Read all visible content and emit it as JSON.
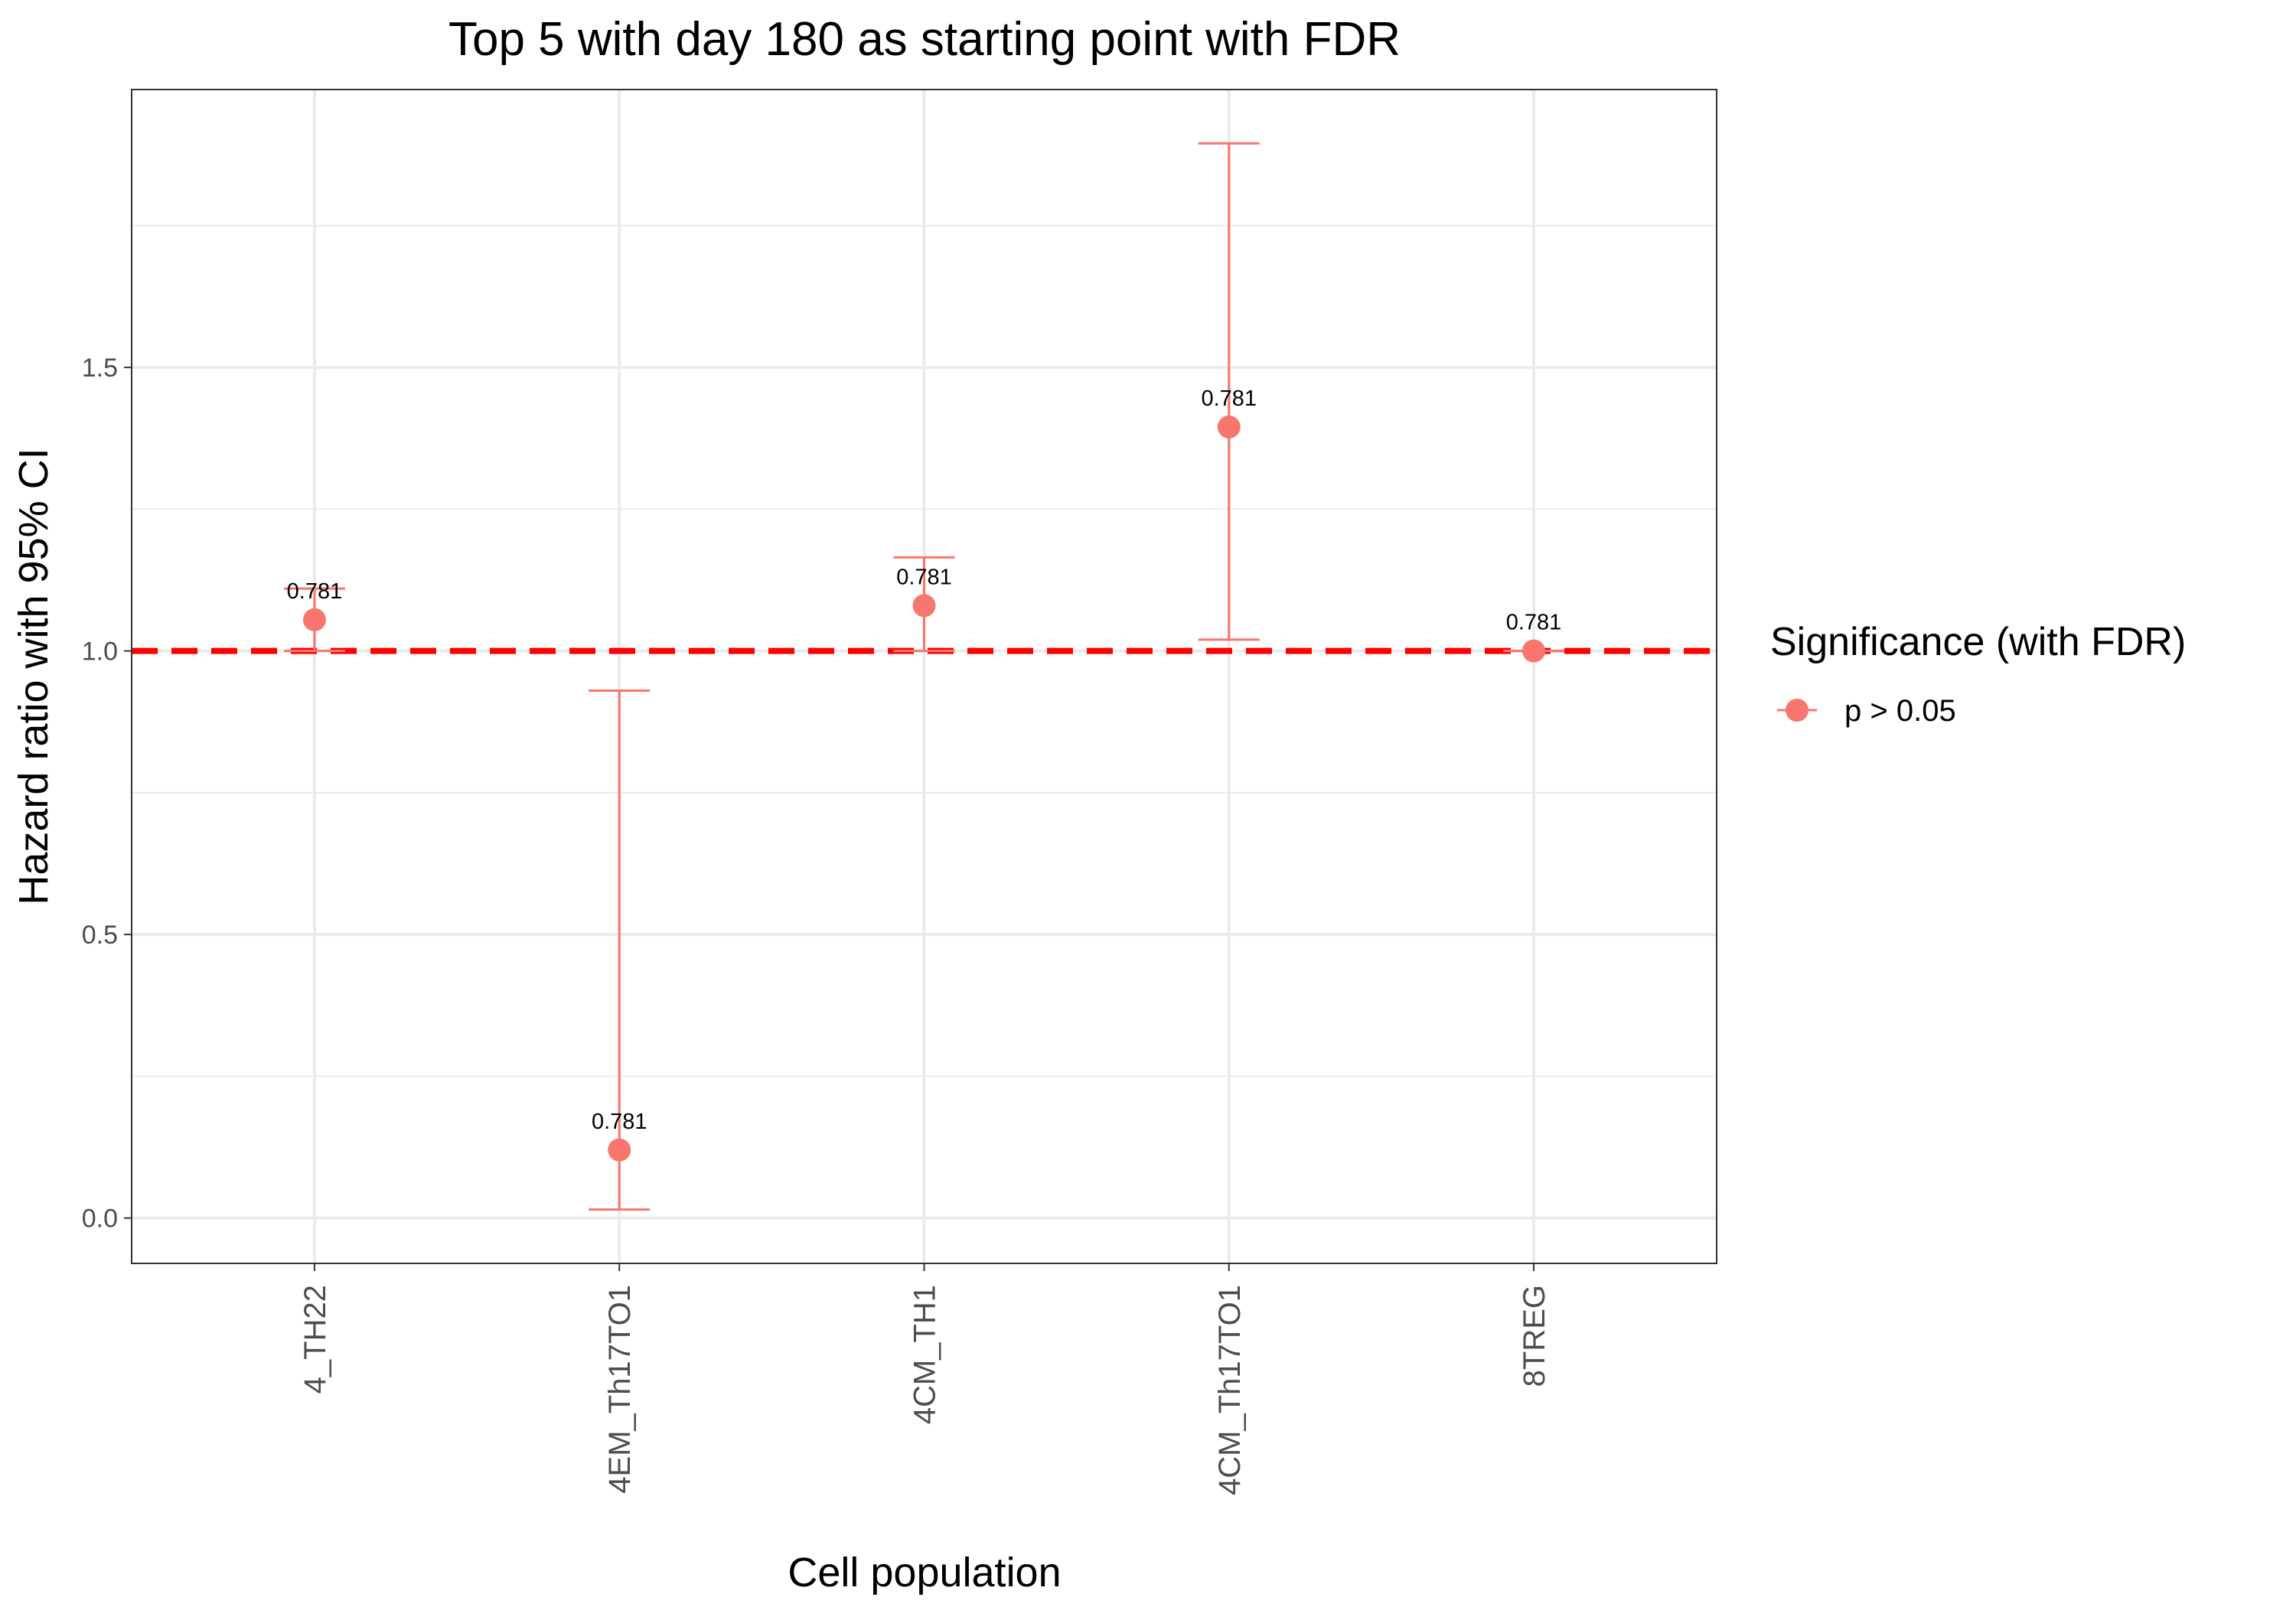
{
  "chart_data": {
    "type": "scatter",
    "title": "Top 5 with day 180 as starting point with FDR",
    "xlabel": "Cell population",
    "ylabel": "Hazard ratio with 95% CI",
    "categories": [
      "4_TH22",
      "4EM_Th17TO1",
      "4CM_TH1",
      "4CM_Th17TO1",
      "8TREG"
    ],
    "ylim": [
      -0.08,
      1.99
    ],
    "yticks": [
      0.0,
      0.5,
      1.0,
      1.5
    ],
    "ytick_labels": [
      "0.0",
      "0.5",
      "1.0",
      "1.5"
    ],
    "grid": true,
    "reference_line": {
      "y": 1.0,
      "style": "dashed",
      "color": "#ff0000"
    },
    "series": [
      {
        "name": "p > 0.05",
        "color": "#f8766d",
        "points": [
          {
            "category": "4_TH22",
            "hr": 1.055,
            "lower": 1.0,
            "upper": 1.11,
            "label": "0.781"
          },
          {
            "category": "4EM_Th17TO1",
            "hr": 0.12,
            "lower": 0.015,
            "upper": 0.93,
            "label": "0.781"
          },
          {
            "category": "4CM_TH1",
            "hr": 1.08,
            "lower": 1.0,
            "upper": 1.165,
            "label": "0.781"
          },
          {
            "category": "4CM_Th17TO1",
            "hr": 1.395,
            "lower": 1.02,
            "upper": 1.895,
            "label": "0.781"
          },
          {
            "category": "8TREG",
            "hr": 1.0,
            "lower": 1.0,
            "upper": 1.0,
            "label": "0.781"
          }
        ]
      }
    ],
    "legend": {
      "title": "Significance (with FDR)",
      "position": "right",
      "entries": [
        "p > 0.05"
      ]
    }
  }
}
